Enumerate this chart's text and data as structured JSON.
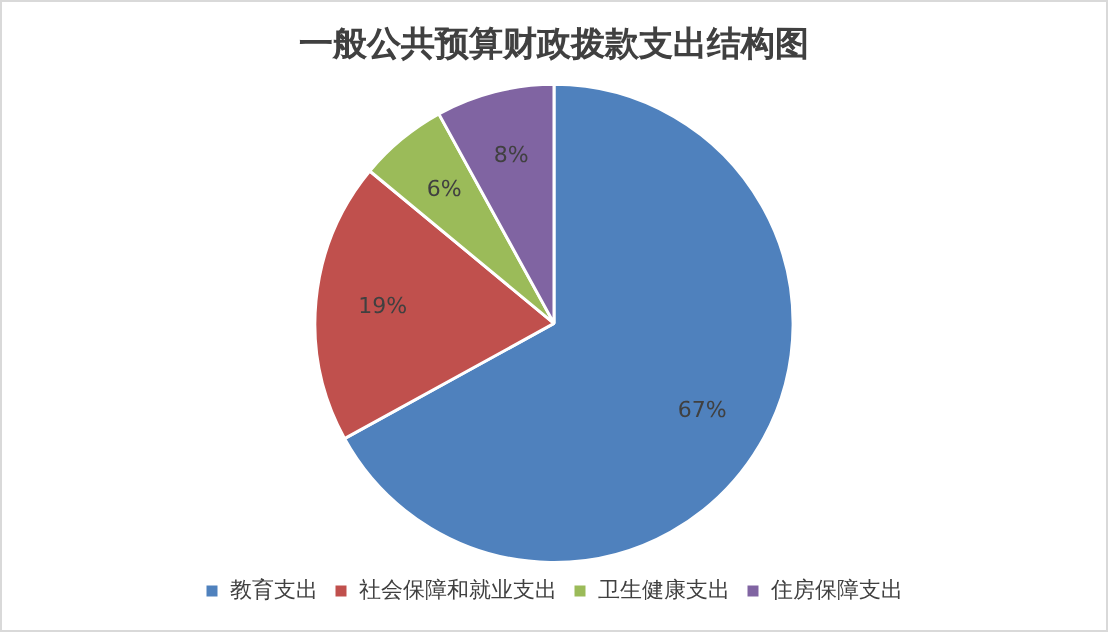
{
  "chart_data": {
    "type": "pie",
    "title": "一般公共预算财政拨款支出结构图",
    "categories": [
      "教育支出",
      "社会保障和就业支出",
      "卫生健康支出",
      "住房保障支出"
    ],
    "values": [
      67,
      19,
      6,
      8
    ],
    "colors": [
      "#4f81bd",
      "#c0504d",
      "#9bbb59",
      "#8064a2"
    ],
    "value_labels": [
      "67%",
      "19%",
      "6%",
      "8%"
    ],
    "legend": "bottom"
  }
}
